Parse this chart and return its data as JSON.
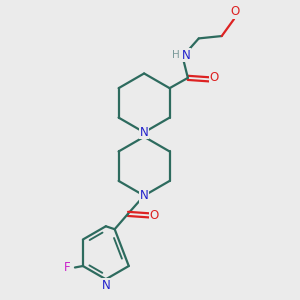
{
  "bg_color": "#ebebeb",
  "bond_color": "#2d6b5e",
  "n_color": "#2222cc",
  "o_color": "#dd2222",
  "f_color": "#cc22cc",
  "h_color": "#7a9a9a",
  "bond_width": 1.6,
  "fig_size": [
    3.0,
    3.0
  ],
  "dpi": 100,
  "xlim": [
    0,
    10
  ],
  "ylim": [
    0,
    10
  ]
}
